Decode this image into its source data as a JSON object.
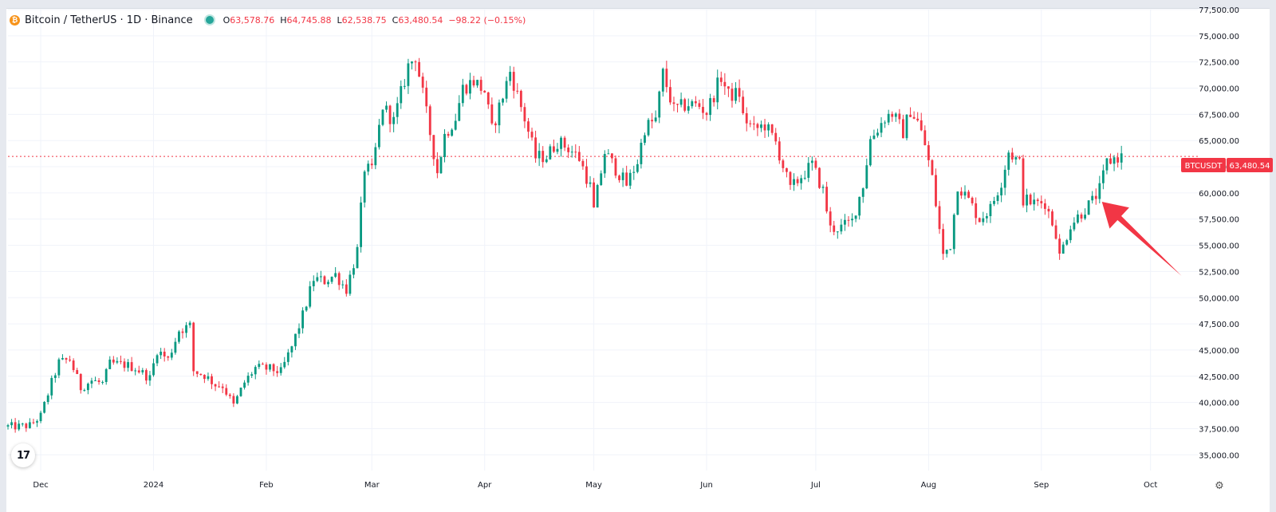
{
  "header": {
    "pair_icon": "bitcoin-icon",
    "title": "Bitcoin / TetherUS · 1D · Binance",
    "open_label": "O",
    "open": "63,578.76",
    "high_label": "H",
    "high": "64,745.88",
    "low_label": "L",
    "low": "62,538.75",
    "close_label": "C",
    "close": "63,480.54",
    "change": "−98.22 (−0.15%)",
    "status_color": "#26a69a"
  },
  "price_tag": {
    "symbol": "BTCUSDT",
    "value": "63,480.54",
    "color": "#f23645"
  },
  "tradingview_logo": "17",
  "settings_icon": "gear-icon",
  "chart_data": {
    "type": "candlestick",
    "symbol": "BTCUSDT",
    "interval": "1D",
    "exchange": "Binance",
    "x_range": [
      "2023-11-22",
      "2024-10-14"
    ],
    "ylim": [
      33500,
      77500
    ],
    "grid": true,
    "y_ticks": [
      {
        "value": 35000,
        "label": "35,000.00"
      },
      {
        "value": 37500,
        "label": "37,500.00"
      },
      {
        "value": 40000,
        "label": "40,000.00"
      },
      {
        "value": 42500,
        "label": "42,500.00"
      },
      {
        "value": 45000,
        "label": "45,000.00"
      },
      {
        "value": 47500,
        "label": "47,500.00"
      },
      {
        "value": 50000,
        "label": "50,000.00"
      },
      {
        "value": 52500,
        "label": "52,500.00"
      },
      {
        "value": 55000,
        "label": "55,000.00"
      },
      {
        "value": 57500,
        "label": "57,500.00"
      },
      {
        "value": 60000,
        "label": "60,000.00"
      },
      {
        "value": 62500,
        "label": "62,500.00"
      },
      {
        "value": 65000,
        "label": "65,000.00"
      },
      {
        "value": 67500,
        "label": "67,500.00"
      },
      {
        "value": 70000,
        "label": "70,000.00"
      },
      {
        "value": 72500,
        "label": "72,500.00"
      },
      {
        "value": 75000,
        "label": "75,000.00"
      },
      {
        "value": 77500,
        "label": "77,500.00"
      }
    ],
    "x_ticks": [
      {
        "date": "2023-12-01",
        "label": "Dec"
      },
      {
        "date": "2024-01-01",
        "label": "2024"
      },
      {
        "date": "2024-02-01",
        "label": "Feb"
      },
      {
        "date": "2024-03-01",
        "label": "Mar"
      },
      {
        "date": "2024-04-01",
        "label": "Apr"
      },
      {
        "date": "2024-05-01",
        "label": "May"
      },
      {
        "date": "2024-06-01",
        "label": "Jun"
      },
      {
        "date": "2024-07-01",
        "label": "Jul"
      },
      {
        "date": "2024-08-01",
        "label": "Aug"
      },
      {
        "date": "2024-09-01",
        "label": "Sep"
      },
      {
        "date": "2024-10-01",
        "label": "Oct"
      }
    ],
    "last_price": 63480.54,
    "up_color": "#089981",
    "down_color": "#f23645",
    "annotation": {
      "type": "arrow",
      "color": "#f23645",
      "points_to_date": "2024-09-15",
      "points_to_price": 59000
    },
    "closes": [
      {
        "date": "2023-11-25",
        "close": 37700
      },
      {
        "date": "2023-11-28",
        "close": 37800
      },
      {
        "date": "2023-12-01",
        "close": 38700
      },
      {
        "date": "2023-12-04",
        "close": 41900
      },
      {
        "date": "2023-12-06",
        "close": 43800
      },
      {
        "date": "2023-12-09",
        "close": 44100
      },
      {
        "date": "2023-12-12",
        "close": 41400
      },
      {
        "date": "2023-12-15",
        "close": 42100
      },
      {
        "date": "2023-12-18",
        "close": 41800
      },
      {
        "date": "2023-12-20",
        "close": 43700
      },
      {
        "date": "2023-12-24",
        "close": 43600
      },
      {
        "date": "2023-12-27",
        "close": 43300
      },
      {
        "date": "2023-12-31",
        "close": 42300
      },
      {
        "date": "2024-01-02",
        "close": 45000
      },
      {
        "date": "2024-01-05",
        "close": 44100
      },
      {
        "date": "2024-01-08",
        "close": 46900
      },
      {
        "date": "2024-01-11",
        "close": 47300
      },
      {
        "date": "2024-01-12",
        "close": 43000
      },
      {
        "date": "2024-01-15",
        "close": 42600
      },
      {
        "date": "2024-01-18",
        "close": 41700
      },
      {
        "date": "2024-01-20",
        "close": 41600
      },
      {
        "date": "2024-01-23",
        "close": 39700
      },
      {
        "date": "2024-01-26",
        "close": 41900
      },
      {
        "date": "2024-01-29",
        "close": 43300
      },
      {
        "date": "2024-02-02",
        "close": 43200
      },
      {
        "date": "2024-02-05",
        "close": 42900
      },
      {
        "date": "2024-02-08",
        "close": 45300
      },
      {
        "date": "2024-02-11",
        "close": 48300
      },
      {
        "date": "2024-02-14",
        "close": 51800
      },
      {
        "date": "2024-02-17",
        "close": 51600
      },
      {
        "date": "2024-02-20",
        "close": 52200
      },
      {
        "date": "2024-02-23",
        "close": 50800
      },
      {
        "date": "2024-02-26",
        "close": 54500
      },
      {
        "date": "2024-02-28",
        "close": 62400
      },
      {
        "date": "2024-03-01",
        "close": 62000
      },
      {
        "date": "2024-03-04",
        "close": 68300
      },
      {
        "date": "2024-03-07",
        "close": 66800
      },
      {
        "date": "2024-03-11",
        "close": 72100
      },
      {
        "date": "2024-03-13",
        "close": 73100
      },
      {
        "date": "2024-03-15",
        "close": 69400
      },
      {
        "date": "2024-03-19",
        "close": 62000
      },
      {
        "date": "2024-03-21",
        "close": 65500
      },
      {
        "date": "2024-03-24",
        "close": 67200
      },
      {
        "date": "2024-03-26",
        "close": 70000
      },
      {
        "date": "2024-03-29",
        "close": 70700
      },
      {
        "date": "2024-04-01",
        "close": 69700
      },
      {
        "date": "2024-04-03",
        "close": 66000
      },
      {
        "date": "2024-04-06",
        "close": 69300
      },
      {
        "date": "2024-04-08",
        "close": 71600
      },
      {
        "date": "2024-04-12",
        "close": 67100
      },
      {
        "date": "2024-04-15",
        "close": 63400
      },
      {
        "date": "2024-04-18",
        "close": 63500
      },
      {
        "date": "2024-04-21",
        "close": 64900
      },
      {
        "date": "2024-04-24",
        "close": 64300
      },
      {
        "date": "2024-04-27",
        "close": 63300
      },
      {
        "date": "2024-04-30",
        "close": 60600
      },
      {
        "date": "2024-05-01",
        "close": 58300
      },
      {
        "date": "2024-05-04",
        "close": 63900
      },
      {
        "date": "2024-05-07",
        "close": 62300
      },
      {
        "date": "2024-05-10",
        "close": 60800
      },
      {
        "date": "2024-05-13",
        "close": 63000
      },
      {
        "date": "2024-05-15",
        "close": 66200
      },
      {
        "date": "2024-05-18",
        "close": 67000
      },
      {
        "date": "2024-05-20",
        "close": 71400
      },
      {
        "date": "2024-05-23",
        "close": 67900
      },
      {
        "date": "2024-05-27",
        "close": 68500
      },
      {
        "date": "2024-05-30",
        "close": 68300
      },
      {
        "date": "2024-06-01",
        "close": 67700
      },
      {
        "date": "2024-06-05",
        "close": 71100
      },
      {
        "date": "2024-06-07",
        "close": 69300
      },
      {
        "date": "2024-06-10",
        "close": 69500
      },
      {
        "date": "2024-06-11",
        "close": 67300
      },
      {
        "date": "2024-06-14",
        "close": 66000
      },
      {
        "date": "2024-06-17",
        "close": 66500
      },
      {
        "date": "2024-06-20",
        "close": 64800
      },
      {
        "date": "2024-06-24",
        "close": 60300
      },
      {
        "date": "2024-06-27",
        "close": 61600
      },
      {
        "date": "2024-06-30",
        "close": 62700
      },
      {
        "date": "2024-07-03",
        "close": 60200
      },
      {
        "date": "2024-07-05",
        "close": 56600
      },
      {
        "date": "2024-07-08",
        "close": 56700
      },
      {
        "date": "2024-07-11",
        "close": 57300
      },
      {
        "date": "2024-07-14",
        "close": 60800
      },
      {
        "date": "2024-07-16",
        "close": 65100
      },
      {
        "date": "2024-07-20",
        "close": 67200
      },
      {
        "date": "2024-07-22",
        "close": 67600
      },
      {
        "date": "2024-07-25",
        "close": 65800
      },
      {
        "date": "2024-07-27",
        "close": 67900
      },
      {
        "date": "2024-07-29",
        "close": 66800
      },
      {
        "date": "2024-07-31",
        "close": 64600
      },
      {
        "date": "2024-08-02",
        "close": 61400
      },
      {
        "date": "2024-08-05",
        "close": 54000
      },
      {
        "date": "2024-08-07",
        "close": 55100
      },
      {
        "date": "2024-08-09",
        "close": 60800
      },
      {
        "date": "2024-08-12",
        "close": 59300
      },
      {
        "date": "2024-08-15",
        "close": 57500
      },
      {
        "date": "2024-08-18",
        "close": 58500
      },
      {
        "date": "2024-08-21",
        "close": 61100
      },
      {
        "date": "2024-08-23",
        "close": 64000
      },
      {
        "date": "2024-08-26",
        "close": 62800
      },
      {
        "date": "2024-08-27",
        "close": 59400
      },
      {
        "date": "2024-08-30",
        "close": 59000
      },
      {
        "date": "2024-09-02",
        "close": 59100
      },
      {
        "date": "2024-09-05",
        "close": 56200
      },
      {
        "date": "2024-09-06",
        "close": 53900
      },
      {
        "date": "2024-09-09",
        "close": 57000
      },
      {
        "date": "2024-09-12",
        "close": 58100
      },
      {
        "date": "2024-09-15",
        "close": 59200
      },
      {
        "date": "2024-09-17",
        "close": 60300
      },
      {
        "date": "2024-09-19",
        "close": 62900
      },
      {
        "date": "2024-09-21",
        "close": 63300
      },
      {
        "date": "2024-09-23",
        "close": 63480
      }
    ]
  }
}
